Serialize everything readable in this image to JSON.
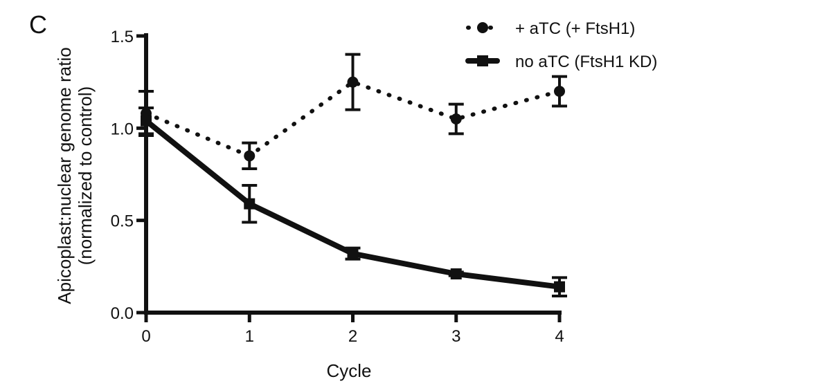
{
  "panel_label": "C",
  "chart_data": {
    "type": "line",
    "title": "",
    "xlabel": "Cycle",
    "ylabel_line1": "Apicoplast:nuclear genome ratio",
    "ylabel_line2": "(normalized to control)",
    "x": [
      0,
      1,
      2,
      3,
      4
    ],
    "xticks": [
      "0",
      "1",
      "2",
      "3",
      "4"
    ],
    "yticks": [
      "0.0",
      "0.5",
      "1.0",
      "1.5"
    ],
    "ytick_values": [
      0.0,
      0.5,
      1.0,
      1.5
    ],
    "xlim": [
      0,
      4
    ],
    "ylim": [
      0,
      1.5
    ],
    "grid": false,
    "legend_position": "top-right",
    "series": [
      {
        "name": "+ aTC (+ FtsH1)",
        "style": "dotted",
        "marker": "circle",
        "color": "#111111",
        "values": [
          1.08,
          0.85,
          1.25,
          1.05,
          1.2
        ],
        "errors": [
          0.12,
          0.07,
          0.15,
          0.08,
          0.08
        ]
      },
      {
        "name": "no aTC (FtsH1 KD)",
        "style": "solid",
        "marker": "square",
        "color": "#111111",
        "values": [
          1.04,
          0.59,
          0.32,
          0.21,
          0.14
        ],
        "errors": [
          0.07,
          0.1,
          0.03,
          0.01,
          0.05
        ]
      }
    ]
  }
}
